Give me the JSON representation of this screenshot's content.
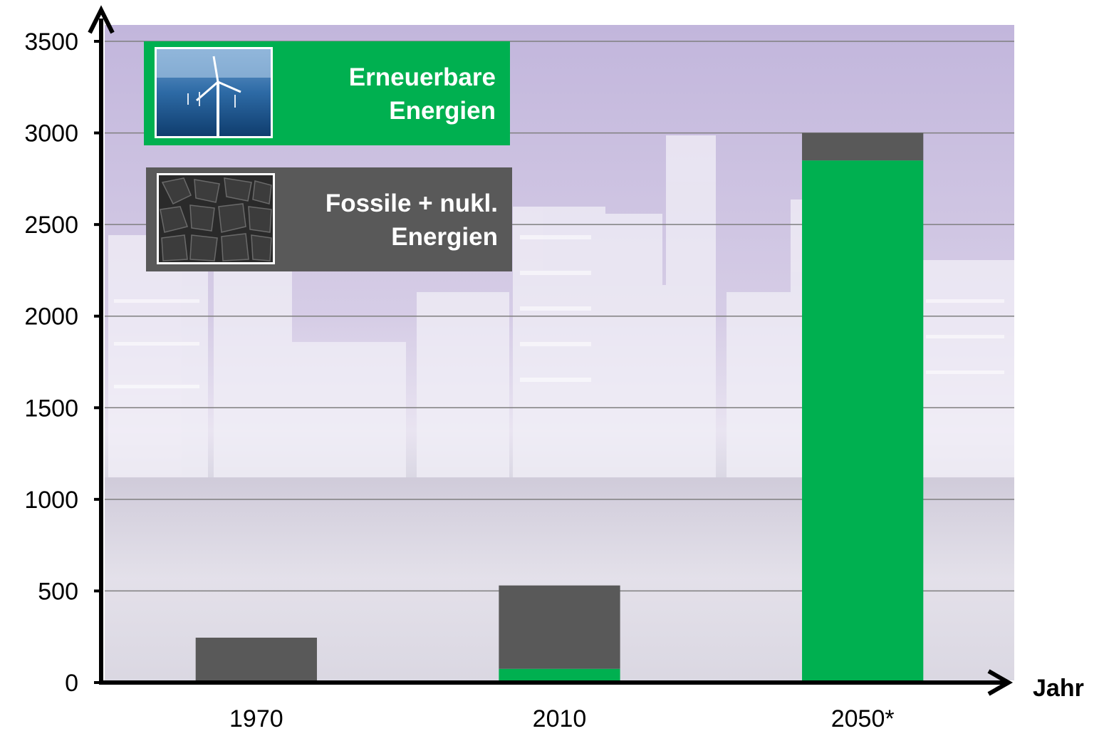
{
  "chart_data": {
    "type": "bar",
    "stacked": true,
    "categories": [
      "1970",
      "2010",
      "2050*"
    ],
    "series": [
      {
        "name": "Erneuerbare Energien",
        "color": "#00b050",
        "values": [
          0,
          75,
          2850
        ]
      },
      {
        "name": "Fossile + nukl. Energien",
        "color": "#595959",
        "values": [
          245,
          455,
          150
        ]
      }
    ],
    "xlabel": "Jahr",
    "ylabel": "",
    "ylim": [
      0,
      3500
    ],
    "yticks": [
      "0",
      "500",
      "1000",
      "1500",
      "2000",
      "2500",
      "3000",
      "3500"
    ],
    "grid": true,
    "legend": {
      "placement": "top-left",
      "items": [
        {
          "line1": "Erneuerbare",
          "line2": "Energien",
          "color": "#00b050",
          "icon": "wind-turbine-photo-icon"
        },
        {
          "line1": "Fossile + nukl.",
          "line2": "Energien",
          "color": "#595959",
          "icon": "coal-photo-icon"
        }
      ]
    },
    "background": "city-skyline-photo"
  }
}
